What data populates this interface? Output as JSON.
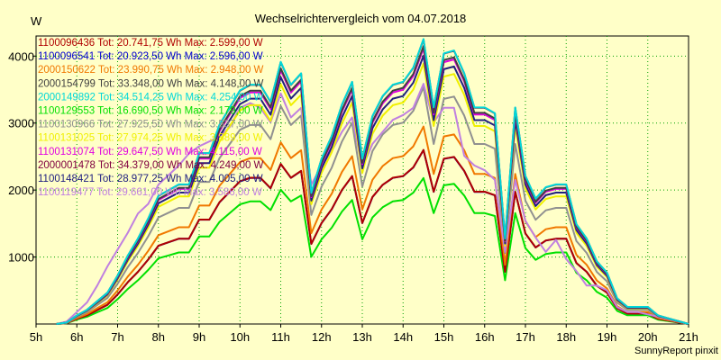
{
  "chart_data": {
    "type": "line",
    "title": "Wechselrichtervergleich vom 04.07.2018",
    "ylabel": "W",
    "footer": "SunnyReport pinxit",
    "x_labels": [
      "5h",
      "6h",
      "7h",
      "8h",
      "9h",
      "10h",
      "11h",
      "12h",
      "13h",
      "14h",
      "15h",
      "16h",
      "17h",
      "18h",
      "19h",
      "20h",
      "21h"
    ],
    "xlim": [
      5,
      21
    ],
    "ylim": [
      0,
      4300
    ],
    "y_ticks": [
      1000,
      2000,
      3000,
      4000
    ],
    "x": [
      5.5,
      5.75,
      6,
      6.25,
      6.5,
      6.75,
      7,
      7.25,
      7.5,
      7.75,
      8,
      8.25,
      8.5,
      8.75,
      9,
      9.25,
      9.5,
      9.75,
      10,
      10.25,
      10.5,
      10.75,
      11,
      11.25,
      11.5,
      11.75,
      12,
      12.25,
      12.5,
      12.75,
      13,
      13.25,
      13.5,
      13.75,
      14,
      14.25,
      14.5,
      14.75,
      15,
      15.25,
      15.5,
      15.75,
      16,
      16.25,
      16.5,
      16.75,
      17,
      17.25,
      17.5,
      17.75,
      18,
      18.25,
      18.5,
      18.75,
      19,
      19.25,
      19.5,
      19.75,
      20,
      20.25,
      20.5,
      20.75,
      21
    ],
    "series": [
      {
        "name": "1100096436",
        "legend": "1100096436 Tot: 20.741,75 Wh Max: 2.599,00 W",
        "color": "#b00000",
        "max": 2599,
        "total_wh": 20741.75
      },
      {
        "name": "1100096541",
        "legend": "1100096541 Tot: 20.923,50 Wh Max: 2.596,00 W",
        "color": "#0000d0",
        "max": 2596,
        "total_wh": 20923.5
      },
      {
        "name": "2000150622",
        "legend": "2000150622 Tot: 23.990,75 Wh Max: 2.948,00 W",
        "color": "#f07800",
        "max": 2948,
        "total_wh": 23990.75
      },
      {
        "name": "2000154799",
        "legend": "2000154799 Tot: 33.348,00 Wh Max: 4.148,00 W",
        "color": "#404040",
        "max": 4148,
        "total_wh": 33348
      },
      {
        "name": "2000149892",
        "legend": "2000149892 Tot: 34.514,25 Wh Max: 4.254,00 W",
        "color": "#00d8d8",
        "max": 4254,
        "total_wh": 34514.25
      },
      {
        "name": "1100129553",
        "legend": "1100129553 Tot: 16.690,50 Wh Max: 2.179,00 W",
        "color": "#00e000",
        "max": 2179,
        "total_wh": 16690.5
      },
      {
        "name": "1100130966",
        "legend": "1100130966 Tot: 27.925,50 Wh Max: 3.537,00 W",
        "color": "#909090",
        "max": 3537,
        "total_wh": 27925.5
      },
      {
        "name": "1100131025",
        "legend": "1100131025 Tot: 27.974,25 Wh Max: 3.889,00 W",
        "color": "#f0f000",
        "max": 3889,
        "total_wh": 27974.25
      },
      {
        "name": "1100131074",
        "legend": "1100131074 Tot: 29.647,50 Wh Max: 4.115,00 W",
        "color": "#e000e0",
        "max": 4115,
        "total_wh": 29647.5
      },
      {
        "name": "2000001478",
        "legend": "2000001478 Tot: 34.379,00 Wh Max: 4.249,00 W",
        "color": "#800040",
        "max": 4249,
        "total_wh": 34379
      },
      {
        "name": "1100148421",
        "legend": "1100148421 Tot: 28.977,25 Wh Max: 4.005,00 W",
        "color": "#202080",
        "max": 4005,
        "total_wh": 28977.25
      },
      {
        "name": "1100119477",
        "legend": "1100119477 Tot: 29.661,00 Wh Max: 3.586,00 W",
        "color": "#c080e0",
        "max": 3586,
        "total_wh": 29661
      }
    ],
    "profile": [
      0,
      0.005,
      0.03,
      0.05,
      0.08,
      0.11,
      0.17,
      0.24,
      0.3,
      0.37,
      0.45,
      0.47,
      0.49,
      0.49,
      0.6,
      0.6,
      0.7,
      0.76,
      0.82,
      0.84,
      0.84,
      0.78,
      0.92,
      0.84,
      0.88,
      0.46,
      0.58,
      0.66,
      0.77,
      0.85,
      0.58,
      0.73,
      0.8,
      0.84,
      0.85,
      0.9,
      1,
      0.76,
      0.95,
      0.96,
      0.88,
      0.76,
      0.76,
      0.74,
      0.3,
      0.76,
      0.52,
      0.44,
      0.48,
      0.49,
      0.49,
      0.35,
      0.3,
      0.22,
      0.18,
      0.09,
      0.06,
      0.06,
      0.06,
      0.03,
      0.02,
      0.01,
      0
    ],
    "profile_light": [
      0,
      0.01,
      0.05,
      0.09,
      0.16,
      0.24,
      0.31,
      0.38,
      0.46,
      0.5,
      0.58,
      0.62,
      0.66,
      0.71,
      0.74,
      0.76,
      0.78,
      0.82,
      0.9,
      0.92,
      0.9,
      0.84,
      0.96,
      0.86,
      0.9,
      0.58,
      0.66,
      0.72,
      0.8,
      0.86,
      0.65,
      0.75,
      0.8,
      0.85,
      0.87,
      0.9,
      1,
      0.84,
      0.9,
      0.9,
      0.7,
      0.66,
      0.64,
      0.6,
      0.3,
      0.6,
      0.43,
      0.36,
      0.3,
      0.35,
      0.27,
      0.22,
      0.16,
      0.16,
      0.14,
      0.07,
      0.05,
      0.05,
      0.04,
      0.03,
      0.02,
      0.01,
      0
    ]
  }
}
